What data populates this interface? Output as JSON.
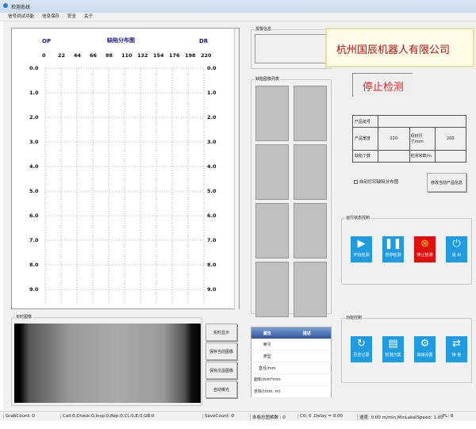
{
  "window": {
    "title": "检测系统"
  },
  "menu": [
    "信号测试功能",
    "信息保存",
    "安全",
    "关于"
  ],
  "chart": {
    "left_label": "OP",
    "title": "缺陷分布图",
    "right_label": "DR",
    "x_ticks": [
      "0",
      "22",
      "44",
      "66",
      "88",
      "110",
      "132",
      "154",
      "176",
      "198",
      "220"
    ],
    "y_ticks": [
      "0.0",
      "1.0",
      "2.0",
      "3.0",
      "4.0",
      "5.0",
      "6.0",
      "7.0",
      "8.0",
      "9.0"
    ]
  },
  "alarm": {
    "label": "报警信息"
  },
  "defect_list": {
    "label": "缺陷图像列表"
  },
  "company": "杭州国辰机器人有限公司",
  "status_display": "停止检测",
  "product": {
    "batch_label": "产品批号",
    "batch_value": "",
    "width_label": "产品宽度",
    "width_value": "220",
    "label_size_label": "母材尺寸/mm",
    "label_size_value": "200",
    "defect_count_label": "缺陷个数",
    "defect_count_value": "",
    "meters_label": "检测米数/m",
    "meters_value": ""
  },
  "auto_print": {
    "label": "自动打印缺陷分布图",
    "checked": false
  },
  "modify_product_button": "修改当前产品信息",
  "run_control": {
    "label": "运行状态控制",
    "buttons": [
      {
        "label": "开始检测",
        "icon": "play-icon"
      },
      {
        "label": "暂停检测",
        "icon": "pause-icon"
      },
      {
        "label": "停止检测",
        "icon": "stop-circle-icon",
        "color": "#e01010"
      },
      {
        "label": "退 出",
        "icon": "power-icon"
      }
    ]
  },
  "func_control": {
    "label": "功能控制",
    "buttons": [
      {
        "label": "历史记录",
        "icon": "history-icon"
      },
      {
        "label": "检测方案",
        "icon": "document-icon"
      },
      {
        "label": "高级设置",
        "icon": "gear-icon"
      },
      {
        "label": "换 卷",
        "icon": "swap-icon"
      }
    ]
  },
  "realtime": {
    "label": "实时图像",
    "buttons": [
      "实时显示",
      "保存当前图像",
      "保存次品图像",
      "自动曝光"
    ]
  },
  "props": {
    "headers": [
      "属性",
      "描述"
    ],
    "rows": [
      "索引",
      "类型",
      "直径/mm",
      "面积/mm*mm",
      "坐标/(mm, m)"
    ]
  },
  "statusbar": [
    "GrabCount: 0",
    "Call:0,Check:0,Insp:0,Rep:0,CL:0,E:0,GB:0",
    "SaveCount: 0",
    "本卷总图帧数 : 0",
    "C0: 0 ,Delay = 0.00",
    "速度: 0.00 m/min,MinLabelSpeed: 1.00",
    "FL: 0"
  ],
  "colors": {
    "accent": "#1f9ce0",
    "stop": "#e01010",
    "company_text": "#b01010"
  }
}
